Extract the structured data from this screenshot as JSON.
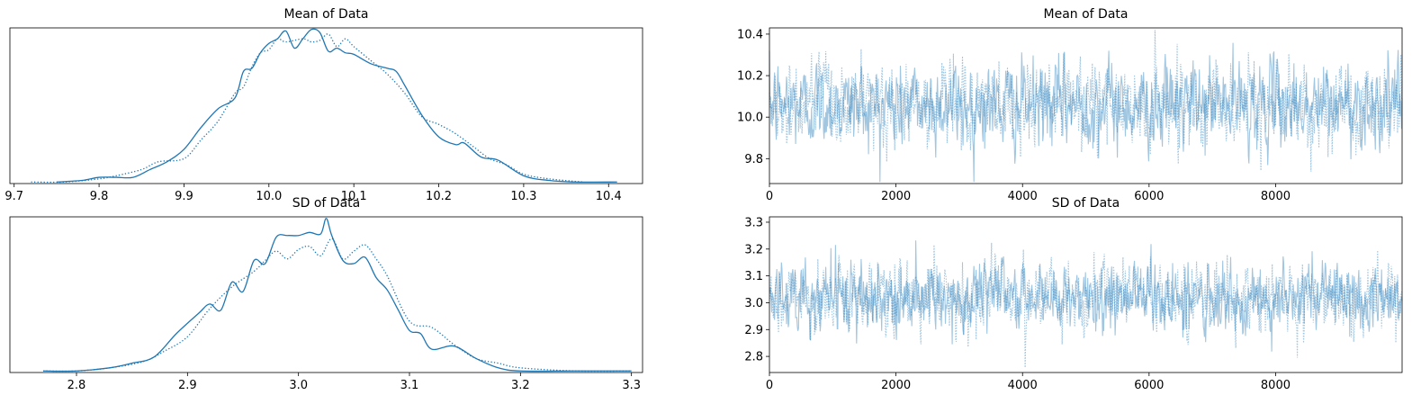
{
  "chart_data": [
    {
      "id": "mean-kde",
      "type": "line",
      "title": "Mean of Data",
      "xlim": [
        9.695,
        10.44
      ],
      "ylim": [
        0,
        1.0
      ],
      "xticks": [
        9.7,
        9.8,
        9.9,
        10.0,
        10.1,
        10.2,
        10.3,
        10.4
      ],
      "xtick_labels": [
        "9.7",
        "9.8",
        "9.9",
        "10.0",
        "10.1",
        "10.2",
        "10.3",
        "10.4"
      ],
      "show_yticks": false,
      "series": [
        {
          "style": "solid",
          "x": [
            9.75,
            9.78,
            9.8,
            9.82,
            9.84,
            9.86,
            9.88,
            9.9,
            9.92,
            9.94,
            9.96,
            9.97,
            9.98,
            9.99,
            10.0,
            10.01,
            10.02,
            10.03,
            10.04,
            10.05,
            10.06,
            10.07,
            10.08,
            10.09,
            10.1,
            10.12,
            10.14,
            10.15,
            10.16,
            10.18,
            10.2,
            10.22,
            10.23,
            10.25,
            10.27,
            10.3,
            10.33,
            10.36,
            10.41
          ],
          "y": [
            0.01,
            0.02,
            0.04,
            0.04,
            0.04,
            0.09,
            0.14,
            0.22,
            0.36,
            0.48,
            0.55,
            0.72,
            0.74,
            0.84,
            0.9,
            0.93,
            0.98,
            0.87,
            0.93,
            0.99,
            0.97,
            0.85,
            0.87,
            0.84,
            0.83,
            0.77,
            0.74,
            0.72,
            0.63,
            0.44,
            0.3,
            0.25,
            0.26,
            0.17,
            0.15,
            0.05,
            0.02,
            0.01,
            0.01
          ]
        },
        {
          "style": "dotted",
          "x": [
            9.72,
            9.76,
            9.8,
            9.82,
            9.85,
            9.87,
            9.9,
            9.92,
            9.94,
            9.96,
            9.97,
            9.98,
            9.99,
            10.0,
            10.01,
            10.02,
            10.04,
            10.05,
            10.06,
            10.07,
            10.08,
            10.09,
            10.1,
            10.12,
            10.14,
            10.16,
            10.18,
            10.2,
            10.22,
            10.24,
            10.26,
            10.28,
            10.3,
            10.33,
            10.37
          ],
          "y": [
            0.01,
            0.01,
            0.03,
            0.05,
            0.09,
            0.14,
            0.16,
            0.28,
            0.4,
            0.58,
            0.62,
            0.75,
            0.84,
            0.86,
            0.93,
            0.91,
            0.93,
            0.91,
            0.92,
            0.96,
            0.88,
            0.93,
            0.88,
            0.79,
            0.7,
            0.58,
            0.43,
            0.38,
            0.32,
            0.24,
            0.16,
            0.12,
            0.06,
            0.03,
            0.01
          ]
        }
      ]
    },
    {
      "id": "mean-trace",
      "type": "line",
      "title": "Mean of Data",
      "xlim": [
        0,
        9999
      ],
      "ylim": [
        9.68,
        10.43
      ],
      "xticks": [
        0,
        2000,
        4000,
        6000,
        8000
      ],
      "xtick_labels": [
        "0",
        "2000",
        "4000",
        "6000",
        "8000"
      ],
      "yticks": [
        9.8,
        10.0,
        10.2,
        10.4
      ],
      "ytick_labels": [
        "9.8",
        "10.0",
        "10.2",
        "10.4"
      ],
      "trace": {
        "mean": 10.06,
        "sd": 0.1,
        "n": 10000
      }
    },
    {
      "id": "sd-kde",
      "type": "line",
      "title": "SD of Data",
      "xlim": [
        2.74,
        3.31
      ],
      "ylim": [
        0,
        1.0
      ],
      "xticks": [
        2.8,
        2.9,
        3.0,
        3.1,
        3.2,
        3.3
      ],
      "xtick_labels": [
        "2.8",
        "2.9",
        "3.0",
        "3.1",
        "3.2",
        "3.3"
      ],
      "show_yticks": false,
      "series": [
        {
          "style": "solid",
          "x": [
            2.77,
            2.8,
            2.83,
            2.85,
            2.87,
            2.89,
            2.91,
            2.92,
            2.93,
            2.94,
            2.95,
            2.96,
            2.97,
            2.98,
            2.99,
            3.0,
            3.01,
            3.02,
            3.025,
            3.03,
            3.04,
            3.05,
            3.06,
            3.07,
            3.08,
            3.09,
            3.1,
            3.11,
            3.12,
            3.14,
            3.16,
            3.18,
            3.2,
            3.25,
            3.3
          ],
          "y": [
            0.01,
            0.01,
            0.03,
            0.06,
            0.1,
            0.25,
            0.38,
            0.44,
            0.4,
            0.58,
            0.52,
            0.72,
            0.7,
            0.87,
            0.88,
            0.88,
            0.9,
            0.89,
            0.99,
            0.88,
            0.72,
            0.7,
            0.74,
            0.61,
            0.53,
            0.4,
            0.27,
            0.25,
            0.15,
            0.17,
            0.09,
            0.03,
            0.01,
            0.01,
            0.01
          ]
        },
        {
          "style": "dotted",
          "x": [
            2.77,
            2.8,
            2.83,
            2.86,
            2.88,
            2.9,
            2.92,
            2.94,
            2.96,
            2.97,
            2.98,
            2.99,
            3.0,
            3.01,
            3.02,
            3.03,
            3.04,
            3.05,
            3.06,
            3.07,
            3.08,
            3.1,
            3.12,
            3.14,
            3.16,
            3.18,
            3.2,
            3.25,
            3.3
          ],
          "y": [
            0.01,
            0.01,
            0.03,
            0.07,
            0.14,
            0.23,
            0.41,
            0.55,
            0.65,
            0.72,
            0.78,
            0.73,
            0.79,
            0.81,
            0.75,
            0.86,
            0.73,
            0.78,
            0.82,
            0.73,
            0.62,
            0.33,
            0.29,
            0.18,
            0.09,
            0.06,
            0.03,
            0.01,
            0.01
          ]
        }
      ]
    },
    {
      "id": "sd-trace",
      "type": "line",
      "title": "SD of Data",
      "xlim": [
        0,
        9999
      ],
      "ylim": [
        2.74,
        3.32
      ],
      "xticks": [
        0,
        2000,
        4000,
        6000,
        8000
      ],
      "xtick_labels": [
        "0",
        "2000",
        "4000",
        "6000",
        "8000"
      ],
      "yticks": [
        2.8,
        2.9,
        3.0,
        3.1,
        3.2,
        3.3
      ],
      "ytick_labels": [
        "2.8",
        "2.9",
        "3.0",
        "3.1",
        "3.2",
        "3.3"
      ],
      "trace": {
        "mean": 3.02,
        "sd": 0.065,
        "n": 10000
      }
    }
  ],
  "colors": {
    "kde_line": "#1f77b4",
    "trace_line": "#1f77b4",
    "axis": "#000000"
  }
}
